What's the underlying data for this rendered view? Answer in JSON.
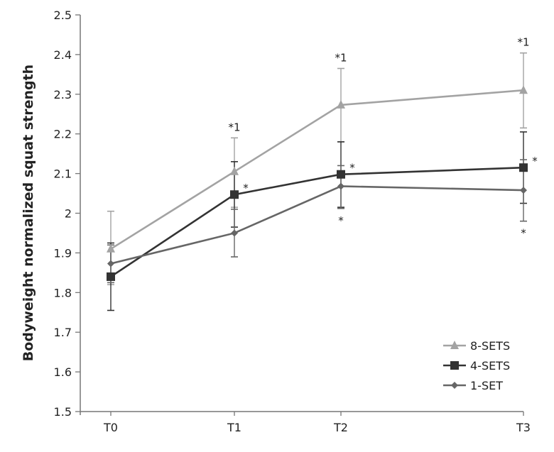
{
  "chart_data": {
    "type": "line",
    "title": "",
    "xlabel": "",
    "ylabel": "Bodyweight normalized squat strength",
    "categories": [
      "T0",
      "T1",
      "T2",
      "T3"
    ],
    "ylim": [
      1.5,
      2.5
    ],
    "yticks": [
      1.5,
      1.6,
      1.7,
      1.8,
      1.9,
      2.0,
      2.1,
      2.2,
      2.3,
      2.4,
      2.5
    ],
    "ytick_labels": [
      "1.5",
      "1.6",
      "1.7",
      "1.8",
      "1.9",
      "2",
      "2.1",
      "2.2",
      "2.3",
      "2.4",
      "2.5"
    ],
    "grid": false,
    "legend_position": "lower right",
    "series": [
      {
        "name": "8-SETS",
        "marker": "triangle",
        "color": "#a3a3a3",
        "values": [
          1.91,
          2.105,
          2.273,
          2.31
        ],
        "error_upper": [
          2.005,
          2.19,
          2.365,
          2.404
        ],
        "error_lower": [
          1.82,
          2.015,
          2.18,
          2.215
        ],
        "annotations": [
          "",
          "*1",
          "*1",
          "*1"
        ]
      },
      {
        "name": "4-SETS",
        "marker": "square",
        "color": "#333333",
        "values": [
          1.84,
          2.047,
          2.098,
          2.115
        ],
        "error_upper": [
          1.925,
          2.13,
          2.18,
          2.205
        ],
        "error_lower": [
          1.755,
          1.965,
          2.015,
          2.025
        ],
        "annotations": [
          "",
          "*",
          "*",
          "*"
        ]
      },
      {
        "name": "1-SET",
        "marker": "diamond",
        "color": "#666666",
        "values": [
          1.873,
          1.95,
          2.068,
          2.058
        ],
        "error_upper": [
          1.92,
          2.01,
          2.12,
          2.135
        ],
        "error_lower": [
          1.825,
          1.89,
          2.012,
          1.98
        ],
        "annotations": [
          "",
          "",
          "*",
          "*"
        ]
      }
    ]
  }
}
